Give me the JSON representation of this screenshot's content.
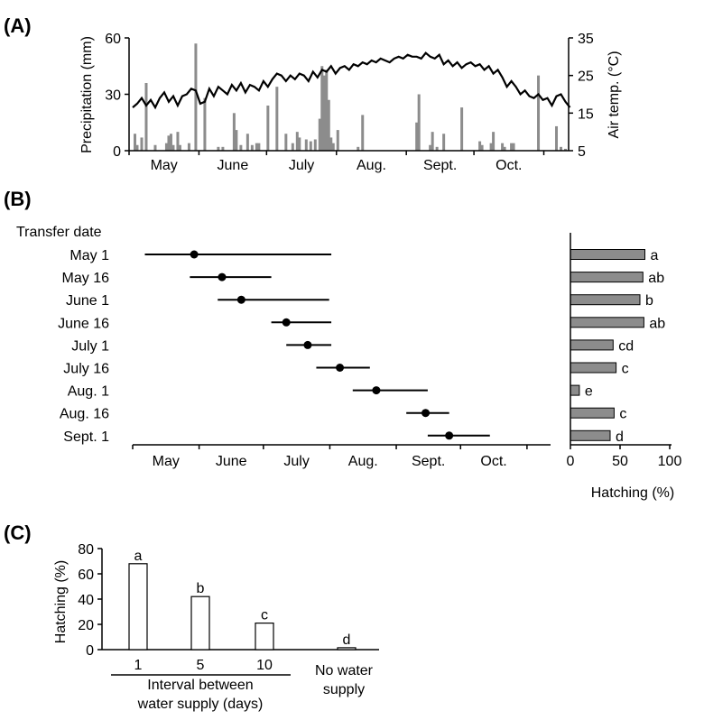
{
  "panels": {
    "A": {
      "label": "(A)",
      "chart_data": {
        "type": "bar+line",
        "ylabel_left": "Precipitation (mm)",
        "ylabel_right": "Air temp. (°C)",
        "ylim_left": [
          0,
          60
        ],
        "ylim_right": [
          5,
          35
        ],
        "yticks_left": [
          "0",
          "30",
          "60"
        ],
        "yticks_right": [
          "5",
          "15",
          "25",
          "35"
        ],
        "months": [
          "May",
          "June",
          "July",
          "Aug.",
          "Sept.",
          "Oct."
        ],
        "precipitation_bars": [
          {
            "day": 1,
            "value": 9
          },
          {
            "day": 2,
            "value": 3
          },
          {
            "day": 4,
            "value": 7
          },
          {
            "day": 6,
            "value": 36
          },
          {
            "day": 10,
            "value": 3
          },
          {
            "day": 15,
            "value": 4
          },
          {
            "day": 16,
            "value": 8
          },
          {
            "day": 17,
            "value": 9
          },
          {
            "day": 18,
            "value": 3
          },
          {
            "day": 20,
            "value": 10
          },
          {
            "day": 21,
            "value": 3
          },
          {
            "day": 25,
            "value": 4
          },
          {
            "day": 28,
            "value": 57
          },
          {
            "day": 32,
            "value": 28
          },
          {
            "day": 38,
            "value": 2
          },
          {
            "day": 40,
            "value": 2
          },
          {
            "day": 45,
            "value": 20
          },
          {
            "day": 46,
            "value": 11
          },
          {
            "day": 48,
            "value": 3
          },
          {
            "day": 51,
            "value": 9
          },
          {
            "day": 53,
            "value": 3
          },
          {
            "day": 55,
            "value": 4
          },
          {
            "day": 56,
            "value": 4
          },
          {
            "day": 60,
            "value": 24
          },
          {
            "day": 64,
            "value": 34
          },
          {
            "day": 68,
            "value": 9
          },
          {
            "day": 71,
            "value": 4
          },
          {
            "day": 73,
            "value": 10
          },
          {
            "day": 74,
            "value": 7
          },
          {
            "day": 77,
            "value": 6
          },
          {
            "day": 79,
            "value": 5
          },
          {
            "day": 81,
            "value": 6
          },
          {
            "day": 83,
            "value": 17
          },
          {
            "day": 84,
            "value": 45
          },
          {
            "day": 85,
            "value": 40
          },
          {
            "day": 86,
            "value": 43
          },
          {
            "day": 87,
            "value": 27
          },
          {
            "day": 88,
            "value": 7
          },
          {
            "day": 89,
            "value": 4
          },
          {
            "day": 91,
            "value": 11
          },
          {
            "day": 100,
            "value": 2
          },
          {
            "day": 102,
            "value": 19
          },
          {
            "day": 126,
            "value": 15
          },
          {
            "day": 127,
            "value": 30
          },
          {
            "day": 132,
            "value": 3
          },
          {
            "day": 133,
            "value": 10
          },
          {
            "day": 135,
            "value": 2
          },
          {
            "day": 138,
            "value": 9
          },
          {
            "day": 146,
            "value": 23
          },
          {
            "day": 154,
            "value": 5
          },
          {
            "day": 155,
            "value": 3
          },
          {
            "day": 159,
            "value": 4
          },
          {
            "day": 160,
            "value": 10
          },
          {
            "day": 164,
            "value": 4
          },
          {
            "day": 165,
            "value": 2
          },
          {
            "day": 168,
            "value": 4
          },
          {
            "day": 169,
            "value": 4
          },
          {
            "day": 180,
            "value": 40
          },
          {
            "day": 188,
            "value": 13
          },
          {
            "day": 190,
            "value": 2
          },
          {
            "day": 192,
            "value": 1
          }
        ],
        "temperature_line": [
          [
            0,
            16.5
          ],
          [
            2,
            17.5
          ],
          [
            4,
            19.0
          ],
          [
            6,
            17.0
          ],
          [
            8,
            18.5
          ],
          [
            10,
            16.5
          ],
          [
            12,
            19.0
          ],
          [
            14,
            20.5
          ],
          [
            16,
            18.0
          ],
          [
            18,
            19.5
          ],
          [
            20,
            17.0
          ],
          [
            22,
            19.5
          ],
          [
            24,
            20.0
          ],
          [
            26,
            21.5
          ],
          [
            28,
            21.0
          ],
          [
            30,
            17.5
          ],
          [
            32,
            18.0
          ],
          [
            34,
            21.5
          ],
          [
            36,
            19.5
          ],
          [
            38,
            22.0
          ],
          [
            40,
            21.0
          ],
          [
            42,
            20.0
          ],
          [
            44,
            22.5
          ],
          [
            46,
            21.0
          ],
          [
            48,
            23.0
          ],
          [
            50,
            20.5
          ],
          [
            52,
            22.5
          ],
          [
            54,
            22.0
          ],
          [
            56,
            21.0
          ],
          [
            58,
            23.5
          ],
          [
            60,
            22.0
          ],
          [
            62,
            24.0
          ],
          [
            64,
            25.5
          ],
          [
            66,
            25.0
          ],
          [
            68,
            23.5
          ],
          [
            70,
            25.0
          ],
          [
            72,
            24.0
          ],
          [
            74,
            25.5
          ],
          [
            76,
            25.0
          ],
          [
            78,
            23.5
          ],
          [
            80,
            26.0
          ],
          [
            82,
            24.5
          ],
          [
            84,
            26.5
          ],
          [
            86,
            26.0
          ],
          [
            88,
            27.5
          ],
          [
            90,
            25.5
          ],
          [
            92,
            27.0
          ],
          [
            94,
            27.5
          ],
          [
            96,
            26.5
          ],
          [
            98,
            28.0
          ],
          [
            100,
            27.5
          ],
          [
            102,
            28.5
          ],
          [
            104,
            28.0
          ],
          [
            106,
            29.0
          ],
          [
            108,
            28.5
          ],
          [
            110,
            29.5
          ],
          [
            112,
            29.0
          ],
          [
            114,
            28.5
          ],
          [
            116,
            29.5
          ],
          [
            118,
            30.0
          ],
          [
            120,
            29.5
          ],
          [
            122,
            30.5
          ],
          [
            124,
            30.0
          ],
          [
            126,
            30.0
          ],
          [
            128,
            29.5
          ],
          [
            130,
            31.0
          ],
          [
            132,
            30.0
          ],
          [
            134,
            29.5
          ],
          [
            136,
            30.5
          ],
          [
            138,
            28.0
          ],
          [
            140,
            29.0
          ],
          [
            142,
            27.5
          ],
          [
            144,
            28.5
          ],
          [
            146,
            27.0
          ],
          [
            148,
            28.0
          ],
          [
            150,
            28.5
          ],
          [
            152,
            27.5
          ],
          [
            154,
            28.0
          ],
          [
            156,
            26.5
          ],
          [
            158,
            27.5
          ],
          [
            160,
            25.5
          ],
          [
            162,
            26.5
          ],
          [
            164,
            24.5
          ],
          [
            166,
            22.0
          ],
          [
            168,
            23.5
          ],
          [
            170,
            22.0
          ],
          [
            172,
            20.0
          ],
          [
            174,
            21.0
          ],
          [
            176,
            19.5
          ],
          [
            178,
            19.0
          ],
          [
            180,
            20.0
          ],
          [
            182,
            18.5
          ],
          [
            184,
            19.0
          ],
          [
            186,
            17.0
          ],
          [
            188,
            19.5
          ],
          [
            190,
            20.0
          ],
          [
            192,
            18.0
          ],
          [
            194,
            16.5
          ]
        ]
      }
    },
    "B": {
      "label": "(B)",
      "chart_data": {
        "type": "range+bar",
        "row_header": "Transfer date",
        "months": [
          "May",
          "June",
          "July",
          "Aug.",
          "Sept.",
          "Oct."
        ],
        "rows": [
          {
            "label": "May 1",
            "start": 4,
            "mid": 27,
            "end": 91,
            "hatching": 75,
            "letter": "a"
          },
          {
            "label": "May 16",
            "start": 25,
            "mid": 40,
            "end": 63,
            "hatching": 73,
            "letter": "ab"
          },
          {
            "label": "June 1",
            "start": 38,
            "mid": 49,
            "end": 90,
            "hatching": 70,
            "letter": "b"
          },
          {
            "label": "June 16",
            "start": 63,
            "mid": 70,
            "end": 91,
            "hatching": 74,
            "letter": "ab"
          },
          {
            "label": "July 1",
            "start": 70,
            "mid": 80,
            "end": 91,
            "hatching": 43,
            "letter": "cd"
          },
          {
            "label": "July 16",
            "start": 84,
            "mid": 95,
            "end": 109,
            "hatching": 46,
            "letter": "c"
          },
          {
            "label": "Aug. 1",
            "start": 101,
            "mid": 112,
            "end": 136,
            "hatching": 9,
            "letter": "e"
          },
          {
            "label": "Aug. 16",
            "start": 126,
            "mid": 135,
            "end": 146,
            "hatching": 44,
            "letter": "c"
          },
          {
            "label": "Sept. 1",
            "start": 136,
            "mid": 146,
            "end": 165,
            "hatching": 40,
            "letter": "d"
          }
        ],
        "hatching_axis": {
          "label": "Hatching (%)",
          "xlim": [
            0,
            100
          ],
          "ticks": [
            "0",
            "50",
            "100"
          ]
        }
      }
    },
    "C": {
      "label": "(C)",
      "chart_data": {
        "type": "bar",
        "ylabel": "Hatching (%)",
        "ylim": [
          0,
          80
        ],
        "yticks": [
          "0",
          "20",
          "40",
          "60",
          "80"
        ],
        "categories": [
          "1",
          "5",
          "10",
          "No water\nsupply"
        ],
        "values": [
          68,
          42,
          21,
          1.5
        ],
        "letters": [
          "a",
          "b",
          "c",
          "d"
        ],
        "group_label_line1": "Interval between",
        "group_label_line2": "water supply (days)",
        "no_water_line1": "No water",
        "no_water_line2": "supply"
      }
    }
  },
  "colors": {
    "bar_gray": "#8c8c8c",
    "line": "#000000",
    "open_bar": "#ffffff"
  }
}
